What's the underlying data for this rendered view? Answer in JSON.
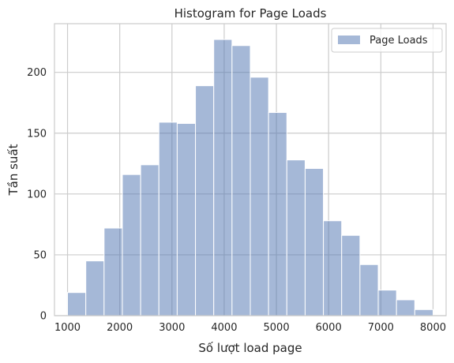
{
  "chart_data": {
    "type": "bar",
    "title": "Histogram for Page Loads",
    "xlabel": "Số lượt load page",
    "ylabel": "Tần suất",
    "xlim": [
      750,
      8250
    ],
    "ylim": [
      0,
      240
    ],
    "xticks": [
      1000,
      2000,
      3000,
      4000,
      5000,
      6000,
      7000,
      8000
    ],
    "yticks": [
      0,
      50,
      100,
      150,
      200
    ],
    "grid": true,
    "legend_position": "top-right",
    "color": "#4c72b0",
    "bin_edges": [
      1000,
      1350,
      1700,
      2050,
      2400,
      2750,
      3100,
      3450,
      3800,
      4150,
      4500,
      4850,
      5200,
      5550,
      5900,
      6250,
      6600,
      6950,
      7300,
      7650,
      8000
    ],
    "series": [
      {
        "name": "Page Loads",
        "values": [
          19,
          45,
          72,
          116,
          124,
          159,
          158,
          189,
          227,
          222,
          196,
          167,
          128,
          121,
          78,
          66,
          42,
          21,
          13,
          5
        ]
      }
    ]
  }
}
